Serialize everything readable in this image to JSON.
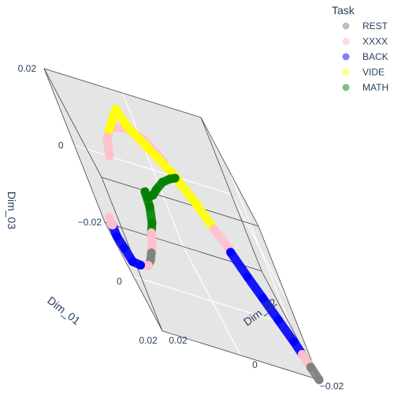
{
  "chart_data": {
    "type": "scatter3d",
    "axes": {
      "x": {
        "title": "Dim_01",
        "range": [
          -0.02,
          0.02
        ],
        "tick_labels": [
          "−0.02",
          "0",
          "0.02"
        ]
      },
      "y": {
        "title": "Dim_02",
        "range": [
          -0.02,
          0.02
        ],
        "tick_labels": [
          "−0.02",
          "0",
          "0.02"
        ]
      },
      "z": {
        "title": "Dim_03",
        "range": [
          -0.02,
          0.02
        ],
        "tick_labels": [
          "−0.02",
          "0",
          "0.02"
        ]
      }
    },
    "grid": true,
    "legend": {
      "title": "Task",
      "placement": "top-right",
      "entries": [
        {
          "name": "REST",
          "color": "#808080"
        },
        {
          "name": "XXXX",
          "color": "#ffc0cb"
        },
        {
          "name": "BACK",
          "color": "#0000ff"
        },
        {
          "name": "VIDE",
          "color": "#ffff00"
        },
        {
          "name": "MATH",
          "color": "#008000"
        }
      ]
    },
    "series": [
      {
        "name": "XXXX",
        "color": "#ffc0cb",
        "points": [
          [
            -0.019,
            0.004,
            0.004
          ],
          [
            -0.014,
            0.0,
            0.012
          ],
          [
            -0.008,
            -0.004,
            0.018
          ],
          [
            -0.002,
            -0.009,
            0.021
          ],
          [
            0.003,
            -0.012,
            0.021
          ],
          [
            0.008,
            -0.014,
            0.019
          ]
        ]
      },
      {
        "name": "VIDE",
        "color": "#ffff00",
        "points": [
          [
            -0.002,
            -0.01,
            0.02
          ],
          [
            -0.001,
            -0.008,
            0.024
          ],
          [
            0.0,
            -0.006,
            0.028
          ],
          [
            0.003,
            -0.005,
            0.026
          ],
          [
            0.006,
            -0.002,
            0.024
          ],
          [
            0.01,
            0.002,
            0.021
          ],
          [
            0.014,
            0.005,
            0.017
          ],
          [
            0.017,
            0.007,
            0.013
          ]
        ]
      },
      {
        "name": "XXXX",
        "color": "#ffc0cb",
        "points": [
          [
            0.017,
            0.007,
            0.013
          ],
          [
            0.019,
            0.009,
            0.01
          ]
        ]
      },
      {
        "name": "BACK",
        "color": "#0000ff",
        "points": [
          [
            0.019,
            0.009,
            0.009
          ],
          [
            0.02,
            0.011,
            0.004
          ],
          [
            0.02,
            0.013,
            -0.001
          ],
          [
            0.02,
            0.015,
            -0.006
          ],
          [
            0.02,
            0.017,
            -0.011
          ],
          [
            0.02,
            0.018,
            -0.014
          ]
        ]
      },
      {
        "name": "XXXX",
        "color": "#ffc0cb",
        "points": [
          [
            0.02,
            0.018,
            -0.014
          ],
          [
            0.02,
            0.019,
            -0.017
          ]
        ]
      },
      {
        "name": "REST",
        "color": "#808080",
        "points": [
          [
            0.02,
            0.019,
            -0.017
          ],
          [
            0.02,
            0.02,
            -0.02
          ]
        ]
      },
      {
        "name": "MATH",
        "color": "#008000",
        "points": [
          [
            -0.006,
            0.004,
            0.009
          ],
          [
            -0.002,
            0.002,
            0.011
          ],
          [
            0.002,
            -0.001,
            0.012
          ],
          [
            0.006,
            -0.004,
            0.012
          ],
          [
            0.009,
            -0.006,
            0.012
          ],
          [
            0.012,
            -0.008,
            0.013
          ]
        ]
      },
      {
        "name": "MATH",
        "color": "#008000",
        "points": [
          [
            0.01,
            -0.008,
            0.013
          ],
          [
            0.007,
            -0.008,
            0.007
          ],
          [
            0.005,
            -0.009,
            0.001
          ],
          [
            0.002,
            -0.01,
            -0.004
          ]
        ]
      },
      {
        "name": "XXXX",
        "color": "#ffc0cb",
        "points": [
          [
            0.002,
            -0.01,
            -0.004
          ],
          [
            0.0,
            -0.011,
            -0.009
          ],
          [
            -0.001,
            -0.012,
            -0.012
          ]
        ]
      },
      {
        "name": "REST",
        "color": "#808080",
        "points": [
          [
            -0.001,
            -0.012,
            -0.012
          ],
          [
            -0.002,
            -0.013,
            -0.015
          ],
          [
            -0.004,
            -0.014,
            -0.018
          ]
        ]
      },
      {
        "name": "XXXX",
        "color": "#ffc0cb",
        "points": [
          [
            -0.004,
            -0.014,
            -0.018
          ],
          [
            -0.005,
            -0.015,
            -0.019
          ]
        ]
      },
      {
        "name": "BACK",
        "color": "#0000ff",
        "points": [
          [
            -0.006,
            -0.016,
            -0.02
          ],
          [
            -0.005,
            -0.018,
            -0.019
          ],
          [
            -0.004,
            -0.019,
            -0.015
          ],
          [
            -0.002,
            -0.02,
            -0.011
          ],
          [
            -0.002,
            -0.02,
            -0.008
          ]
        ]
      },
      {
        "name": "XXXX",
        "color": "#ffc0cb",
        "points": [
          [
            -0.002,
            -0.02,
            -0.008
          ],
          [
            -0.002,
            -0.02,
            -0.006
          ]
        ]
      }
    ]
  }
}
